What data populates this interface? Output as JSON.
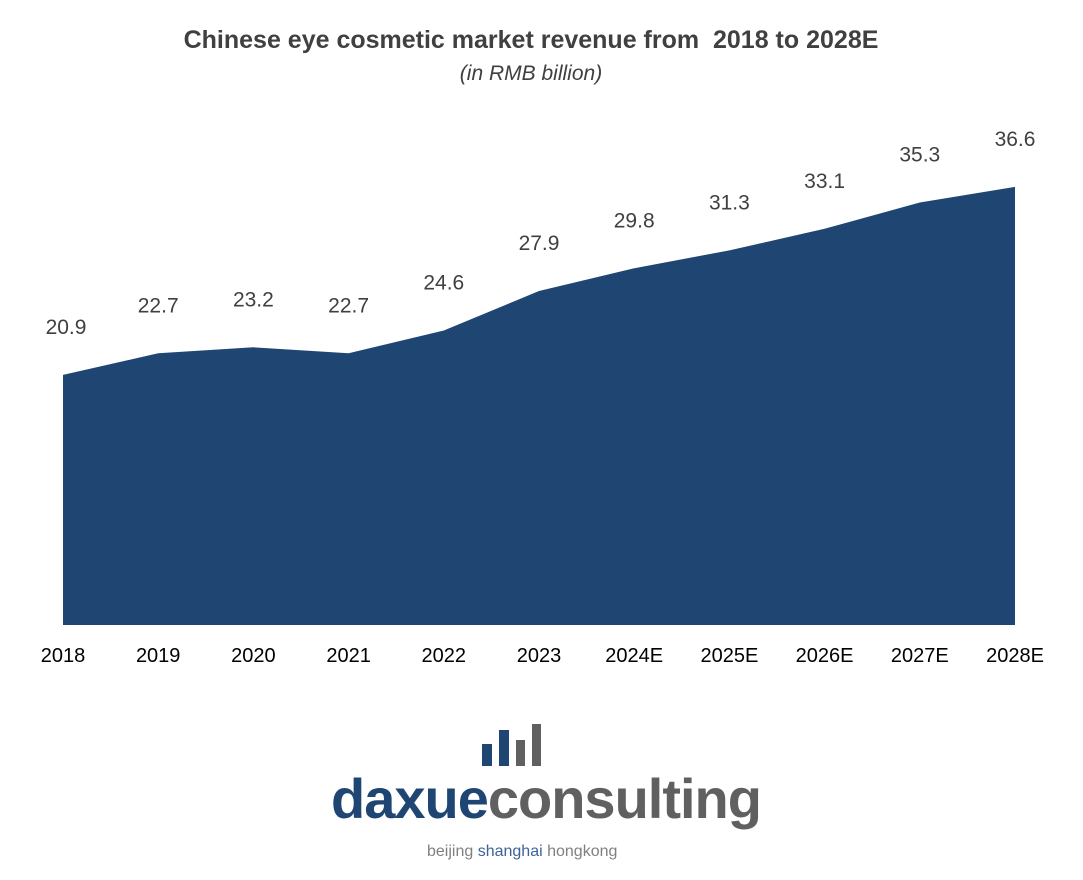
{
  "chart_data": {
    "type": "area",
    "title": "Chinese eye cosmetic market revenue from  2018 to 2028E",
    "subtitle": "(in RMB billion)",
    "subtitle_italic": "in RMB billion",
    "categories": [
      "2018",
      "2019",
      "2020",
      "2021",
      "2022",
      "2023",
      "2024E",
      "2025E",
      "2026E",
      "2027E",
      "2028E"
    ],
    "values": [
      20.9,
      22.7,
      23.2,
      22.7,
      24.6,
      27.9,
      29.8,
      31.3,
      33.1,
      35.3,
      36.6
    ],
    "ylim": [
      0,
      36.6
    ],
    "grid": false,
    "data_labels": true,
    "color": "#1f4672"
  },
  "logo": {
    "part1": "daxue",
    "part2": "consulting",
    "tagline": [
      "beijing ",
      "shanghai",
      " hongkong"
    ],
    "blue": "#1f4672",
    "gray": "#606060"
  }
}
